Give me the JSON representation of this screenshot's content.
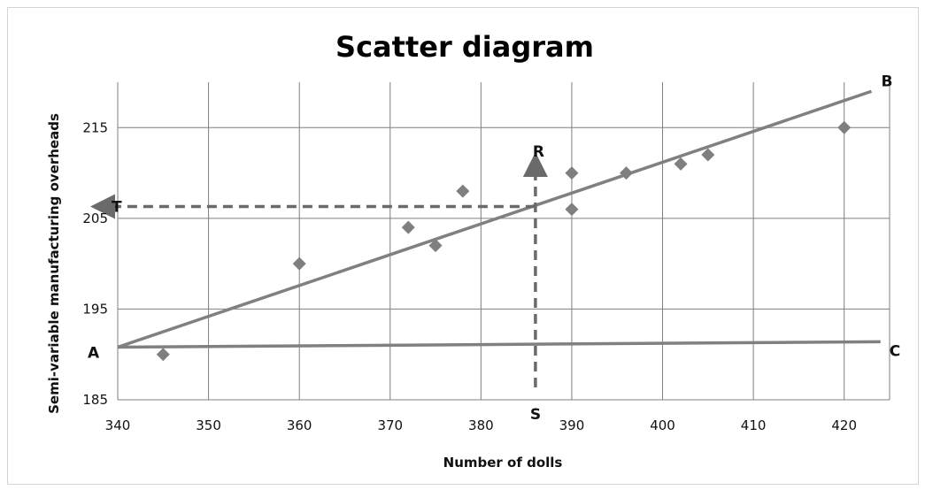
{
  "chart_data": {
    "type": "scatter",
    "title": "Scatter diagram",
    "xlabel": "Number of dolls",
    "ylabel": "Semi-variable  manufacturing overheads",
    "xlim": [
      340,
      425
    ],
    "ylim": [
      185,
      220
    ],
    "x_ticks": [
      340,
      350,
      360,
      370,
      380,
      390,
      400,
      410,
      420
    ],
    "y_ticks": [
      185,
      195,
      205,
      215
    ],
    "grid": true,
    "points": [
      {
        "x": 345,
        "y": 190
      },
      {
        "x": 360,
        "y": 200
      },
      {
        "x": 372,
        "y": 204
      },
      {
        "x": 375,
        "y": 202
      },
      {
        "x": 378,
        "y": 208
      },
      {
        "x": 390,
        "y": 210
      },
      {
        "x": 390,
        "y": 206
      },
      {
        "x": 396,
        "y": 210
      },
      {
        "x": 402,
        "y": 211
      },
      {
        "x": 405,
        "y": 212
      },
      {
        "x": 420,
        "y": 215
      }
    ],
    "lines": [
      {
        "from_label": "A",
        "to_label": "B",
        "x": [
          340,
          423
        ],
        "y": [
          190.8,
          219
        ],
        "style": "solid"
      },
      {
        "from_label": "A",
        "to_label": "C",
        "x": [
          340,
          424
        ],
        "y": [
          190.8,
          191.4
        ],
        "style": "solid"
      }
    ],
    "reading": {
      "x": 386,
      "y": 206.3,
      "vertical_labels": [
        "S",
        "R"
      ],
      "horizontal_label": "T"
    },
    "colors": {
      "marker": "#7f7f7f",
      "line": "#808080",
      "grid": "#7f7f7f",
      "dashed": "#6a6a6a"
    }
  }
}
